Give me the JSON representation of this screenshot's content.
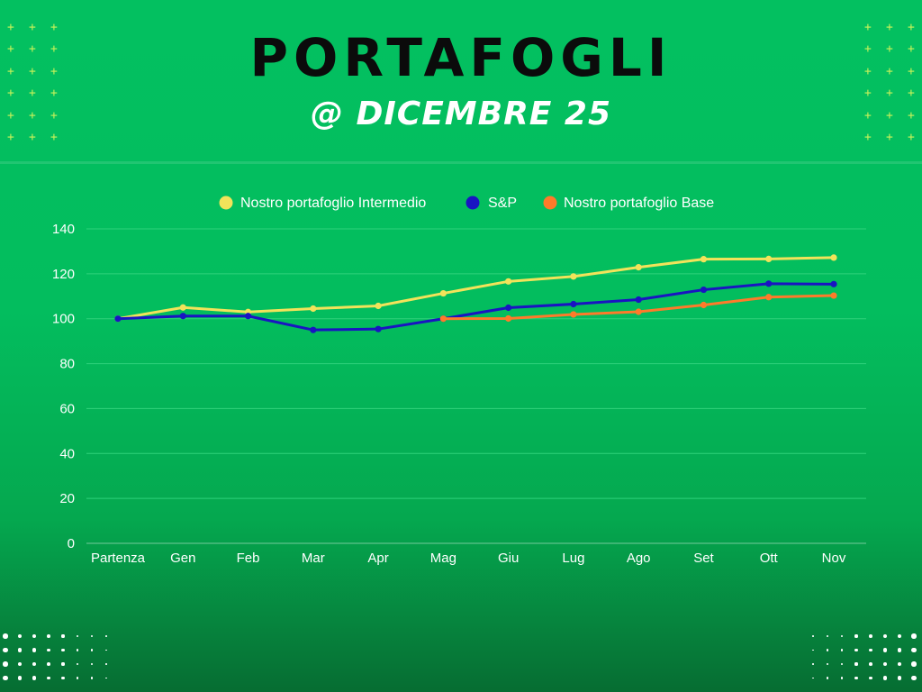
{
  "header": {
    "title": "PORTAFOGLI",
    "subtitle": "@ DICEMBRE 25"
  },
  "colors": {
    "background": "#03bd5e",
    "title": "#0b0b0b",
    "decor_plus": "#c9f25a",
    "gridline": "#2fd27b",
    "axis_text": "#ffffff"
  },
  "chart_data": {
    "type": "line",
    "categories": [
      "Partenza",
      "Gen",
      "Feb",
      "Mar",
      "Apr",
      "Mag",
      "Giu",
      "Lug",
      "Ago",
      "Set",
      "Ott",
      "Nov"
    ],
    "series": [
      {
        "name": "Nostro portafoglio Intermedio",
        "color": "#f2e35a",
        "values": [
          100,
          105,
          103,
          104.5,
          105.7,
          111.3,
          116.6,
          118.8,
          122.9,
          126.5,
          126.6,
          127.2
        ]
      },
      {
        "name": "S&P",
        "color": "#1a14c2",
        "values": [
          100,
          101.2,
          101.2,
          95,
          95.4,
          100,
          104.9,
          106.5,
          108.5,
          112.9,
          115.6,
          115.4
        ]
      },
      {
        "name": "Nostro portafoglio Base",
        "color": "#ff7a2a",
        "values": [
          null,
          null,
          null,
          null,
          null,
          100,
          100.1,
          101.9,
          103.1,
          106.1,
          109.6,
          110.3
        ]
      }
    ],
    "y_ticks": [
      "0",
      "20",
      "40",
      "60",
      "80",
      "100",
      "120",
      "140"
    ],
    "ylim": [
      0,
      140
    ],
    "grid": true,
    "legend_position": "top-center",
    "title": "",
    "xlabel": "",
    "ylabel": ""
  }
}
